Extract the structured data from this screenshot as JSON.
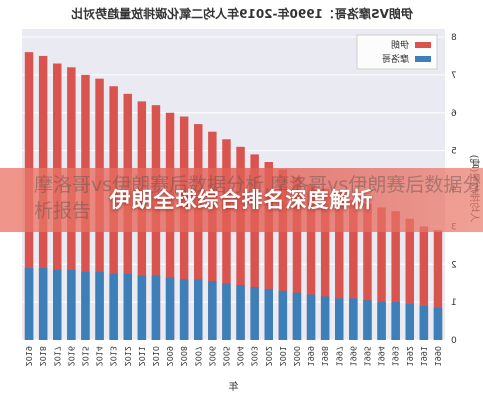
{
  "chart_data": {
    "type": "bar",
    "title": "伊朗VS摩洛哥：1990年-2019年人均二氧化碳排放量趋势对比",
    "x_label": "年",
    "y_label": "人均排放量(吨)",
    "categories": [
      "1990",
      "1991",
      "1992",
      "1993",
      "1994",
      "1995",
      "1996",
      "1997",
      "1998",
      "1999",
      "2000",
      "2001",
      "2002",
      "2003",
      "2004",
      "2005",
      "2006",
      "2007",
      "2008",
      "2009",
      "2010",
      "2011",
      "2012",
      "2013",
      "2014",
      "2015",
      "2016",
      "2017",
      "2018",
      "2019"
    ],
    "series": [
      {
        "name": "伊朗",
        "color": "#d9534f",
        "values": [
          2.9,
          3.0,
          3.2,
          3.4,
          3.5,
          3.6,
          3.7,
          3.9,
          4.0,
          4.1,
          4.3,
          4.5,
          4.7,
          4.9,
          5.1,
          5.3,
          5.5,
          5.7,
          5.9,
          6.0,
          6.2,
          6.3,
          6.5,
          6.7,
          6.9,
          7.0,
          7.2,
          7.3,
          7.5,
          7.6
        ]
      },
      {
        "name": "摩洛哥",
        "color": "#3d7fb8",
        "values": [
          0.85,
          0.9,
          0.95,
          1.0,
          1.0,
          1.05,
          1.1,
          1.1,
          1.15,
          1.2,
          1.25,
          1.3,
          1.35,
          1.4,
          1.45,
          1.5,
          1.55,
          1.6,
          1.6,
          1.65,
          1.7,
          1.7,
          1.75,
          1.75,
          1.8,
          1.8,
          1.85,
          1.85,
          1.9,
          1.9
        ]
      }
    ],
    "ylim": [
      0,
      8
    ],
    "yticks": [
      0,
      1,
      2,
      3,
      4,
      5,
      6,
      7,
      8
    ],
    "grid": true,
    "legend": "upper left",
    "mirrored": true
  },
  "banner": {
    "text": "摩洛哥vs伊朗赛后数据分析,摩洛哥vs伊朗赛后数据分析报告",
    "headline": "伊朗全球综合排名深度解析"
  }
}
